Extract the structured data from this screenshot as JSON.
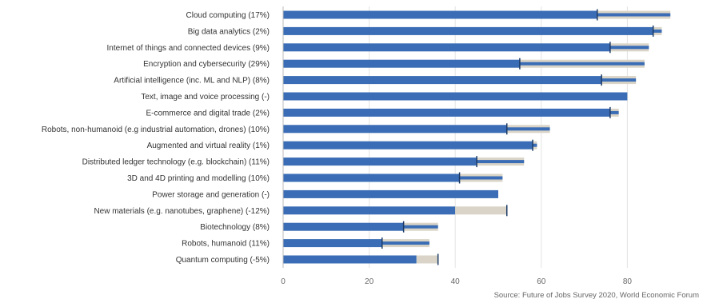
{
  "chart_data": {
    "type": "bar",
    "orientation": "horizontal",
    "xlim": [
      0,
      100
    ],
    "x_ticks": [
      "0",
      "20",
      "40",
      "60",
      "80"
    ],
    "grid": "vertical",
    "colors": {
      "current": "#3a6db5",
      "change": "#d9d4c7",
      "marker": "#1c3a66",
      "grid": "#e3e3e3",
      "axis": "#bbbbbb"
    },
    "categories": [
      "Cloud computing (17%)",
      "Big data analytics (2%)",
      "Internet of things and connected devices (9%)",
      "Encryption and cybersecurity (29%)",
      "Artificial intelligence (inc. ML and NLP) (8%)",
      "Text, image and voice processing (-)",
      "E-commerce and digital trade (2%)",
      "Robots, non-humanoid (e.g industrial automation, drones) (10%)",
      "Augmented and virtual reality (1%)",
      "Distributed ledger technology (e.g. blockchain) (11%)",
      "3D and 4D printing and modelling (10%)",
      "Power storage and generation (-)",
      "New materials (e.g. nanotubes, graphene) (-12%)",
      "Biotechnology (8%)",
      "Robots, humanoid (11%)",
      "Quantum computing (-5%)"
    ],
    "series": [
      {
        "values": [
          90,
          88,
          85,
          84,
          82,
          80,
          78,
          62,
          59,
          56,
          51,
          50,
          40,
          36,
          34,
          31
        ]
      },
      {
        "values": [
          73,
          86,
          76,
          55,
          74,
          null,
          76,
          52,
          58,
          45,
          41,
          null,
          52,
          28,
          23,
          36
        ]
      }
    ]
  },
  "source": "Source: Future of Jobs Survey 2020, World Economic Forum"
}
